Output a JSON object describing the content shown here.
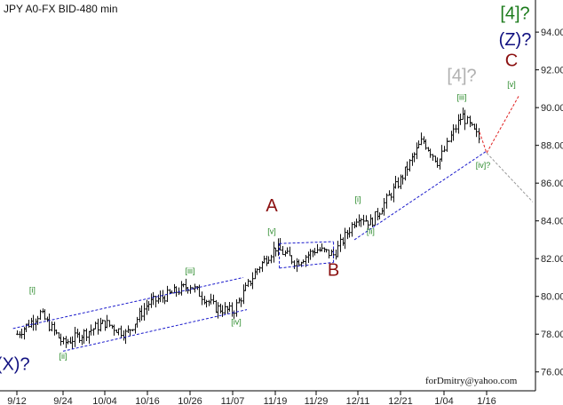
{
  "title": "JPY A0-FX BID-480 min",
  "watermark": "forDmitry@yahoo.com",
  "colors": {
    "bars": "#111111",
    "channel": "#1a1acc",
    "minor_wave": "#2a8a2a",
    "major_green": "#1a7a1a",
    "navy": "#101080",
    "maroon": "#8b1010",
    "gray_label": "#b0b0b0",
    "forecast_red": "#e02020",
    "forecast_gray": "#999999"
  },
  "chart_data": {
    "type": "line",
    "series_style": "ohlc-bars",
    "x_tick_labels": [
      "9/12",
      "9/24",
      "10/04",
      "10/16",
      "10/26",
      "11/07",
      "11/19",
      "11/29",
      "12/11",
      "12/21",
      "1/04",
      "1/16"
    ],
    "y_tick_labels": [
      "76.00",
      "78.00",
      "80.00",
      "82.00",
      "84.00",
      "86.00",
      "88.00",
      "90.00",
      "92.00",
      "94.00"
    ],
    "ylim": [
      75.0,
      95.7
    ],
    "price_path": [
      {
        "x": "9/12",
        "y": 78.0
      },
      {
        "x": "9/18",
        "y": 79.1
      },
      {
        "x": "9/24",
        "y": 77.5
      },
      {
        "x": "10/04",
        "y": 78.6
      },
      {
        "x": "10/10",
        "y": 78.0
      },
      {
        "x": "10/16",
        "y": 79.6
      },
      {
        "x": "10/26",
        "y": 80.6
      },
      {
        "x": "11/02",
        "y": 79.4
      },
      {
        "x": "11/07",
        "y": 79.2
      },
      {
        "x": "11/14",
        "y": 81.5
      },
      {
        "x": "11/19",
        "y": 82.6
      },
      {
        "x": "11/24",
        "y": 81.8
      },
      {
        "x": "11/29",
        "y": 82.5
      },
      {
        "x": "12/04",
        "y": 82.2
      },
      {
        "x": "12/11",
        "y": 84.3
      },
      {
        "x": "12/14",
        "y": 83.9
      },
      {
        "x": "12/21",
        "y": 86.2
      },
      {
        "x": "12/28",
        "y": 88.3
      },
      {
        "x": "1/02",
        "y": 87.1
      },
      {
        "x": "1/09",
        "y": 89.6
      },
      {
        "x": "1/14",
        "y": 88.3
      }
    ],
    "wave_labels": [
      {
        "text": "(X)?",
        "group": "navy",
        "size": "large",
        "x": "9/11",
        "y": 76.1
      },
      {
        "text": "[i]",
        "group": "minor",
        "size": "small",
        "x": "9/16",
        "y": 80.2
      },
      {
        "text": "[ii]",
        "group": "minor",
        "size": "small",
        "x": "9/24",
        "y": 76.7
      },
      {
        "text": "[iii]",
        "group": "minor",
        "size": "small",
        "x": "10/26",
        "y": 81.2
      },
      {
        "text": "[iv]",
        "group": "minor",
        "size": "small",
        "x": "11/08",
        "y": 78.5
      },
      {
        "text": "A",
        "group": "maroon",
        "size": "large",
        "x": "11/18",
        "y": 84.5
      },
      {
        "text": "[v]",
        "group": "minor",
        "size": "small",
        "x": "11/18",
        "y": 83.3
      },
      {
        "text": "B",
        "group": "maroon",
        "size": "large",
        "x": "12/04",
        "y": 81.1
      },
      {
        "text": "[i]",
        "group": "minor",
        "size": "small",
        "x": "12/11",
        "y": 85.0
      },
      {
        "text": "[ii]",
        "group": "minor",
        "size": "small",
        "x": "12/14",
        "y": 83.3
      },
      {
        "text": "[iii]",
        "group": "minor",
        "size": "small",
        "x": "1/09",
        "y": 90.4
      },
      {
        "text": "[iv]?",
        "group": "minor",
        "size": "small",
        "x": "1/15",
        "y": 86.8
      },
      {
        "text": "[4]?",
        "group": "gray",
        "size": "large",
        "x": "1/09",
        "y": 91.4
      },
      {
        "text": "[v]",
        "group": "minor",
        "size": "small",
        "x": "1/23",
        "y": 91.1
      },
      {
        "text": "C",
        "group": "maroon",
        "size": "large",
        "x": "1/23",
        "y": 92.2
      },
      {
        "text": "(Z)?",
        "group": "navy",
        "size": "large",
        "x": "1/24",
        "y": 93.3
      },
      {
        "text": "[4]?",
        "group": "green",
        "size": "large",
        "x": "1/24",
        "y": 94.7
      }
    ],
    "channel_lines": [
      {
        "from": {
          "x": "9/11",
          "y": 78.3
        },
        "to": {
          "x": "11/10",
          "y": 81.0
        }
      },
      {
        "from": {
          "x": "9/24",
          "y": 77.1
        },
        "to": {
          "x": "11/11",
          "y": 79.3
        }
      },
      {
        "from": {
          "x": "12/10",
          "y": 83.0
        },
        "to": {
          "x": "1/16",
          "y": 87.7
        }
      },
      {
        "from": {
          "x": "11/20",
          "y": 82.8
        },
        "to": {
          "x": "12/04",
          "y": 82.9
        }
      },
      {
        "from": {
          "x": "11/20",
          "y": 81.5
        },
        "to": {
          "x": "12/04",
          "y": 81.8
        }
      },
      {
        "from": {
          "x": "11/20",
          "y": 81.5
        },
        "to": {
          "x": "11/20",
          "y": 82.8
        }
      },
      {
        "from": {
          "x": "12/04",
          "y": 81.8
        },
        "to": {
          "x": "12/04",
          "y": 82.9
        }
      }
    ],
    "forecast_paths": [
      {
        "color": "red",
        "points": [
          {
            "x": "1/14",
            "y": 88.7
          },
          {
            "x": "1/16",
            "y": 87.6
          },
          {
            "x": "1/25",
            "y": 90.6
          }
        ]
      },
      {
        "color": "gray",
        "points": [
          {
            "x": "1/16",
            "y": 87.6
          },
          {
            "x": "1/29",
            "y": 85.0
          }
        ]
      }
    ],
    "grid": false
  }
}
